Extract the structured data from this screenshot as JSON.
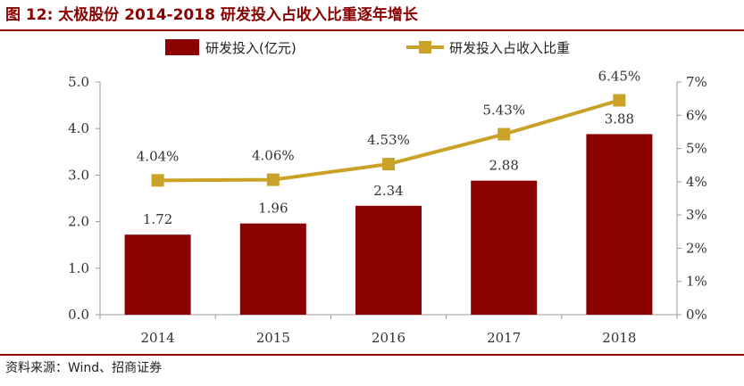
{
  "figure": {
    "title": "图  12:  太极股份  2014-2018  研发投入占收入比重逐年增长",
    "source": "资料来源：Wind、招商证券"
  },
  "colors": {
    "bar": "#8B0000",
    "line": "#C9A227",
    "axis": "#999999",
    "rule": "#8B0000"
  },
  "chart_data": {
    "type": "bar",
    "title": "",
    "categories": [
      "2014",
      "2015",
      "2016",
      "2017",
      "2018"
    ],
    "series": [
      {
        "name": "研发投入(亿元)",
        "type": "bar",
        "axis": "left",
        "values": [
          1.72,
          1.96,
          2.34,
          2.88,
          3.88
        ],
        "labels": [
          "1.72",
          "1.96",
          "2.34",
          "2.88",
          "3.88"
        ]
      },
      {
        "name": "研发投入占收入比重",
        "type": "line",
        "axis": "right",
        "values": [
          4.04,
          4.06,
          4.53,
          5.43,
          6.45
        ],
        "labels": [
          "4.04%",
          "4.06%",
          "4.53%",
          "5.43%",
          "6.45%"
        ]
      }
    ],
    "y_left": {
      "min": 0,
      "max": 5,
      "ticks": [
        "0.0",
        "1.0",
        "2.0",
        "3.0",
        "4.0",
        "5.0"
      ]
    },
    "y_right": {
      "min": 0,
      "max": 7,
      "ticks": [
        "0%",
        "1%",
        "2%",
        "3%",
        "4%",
        "5%",
        "6%",
        "7%"
      ]
    },
    "legend_position": "top-center",
    "grid": false
  }
}
